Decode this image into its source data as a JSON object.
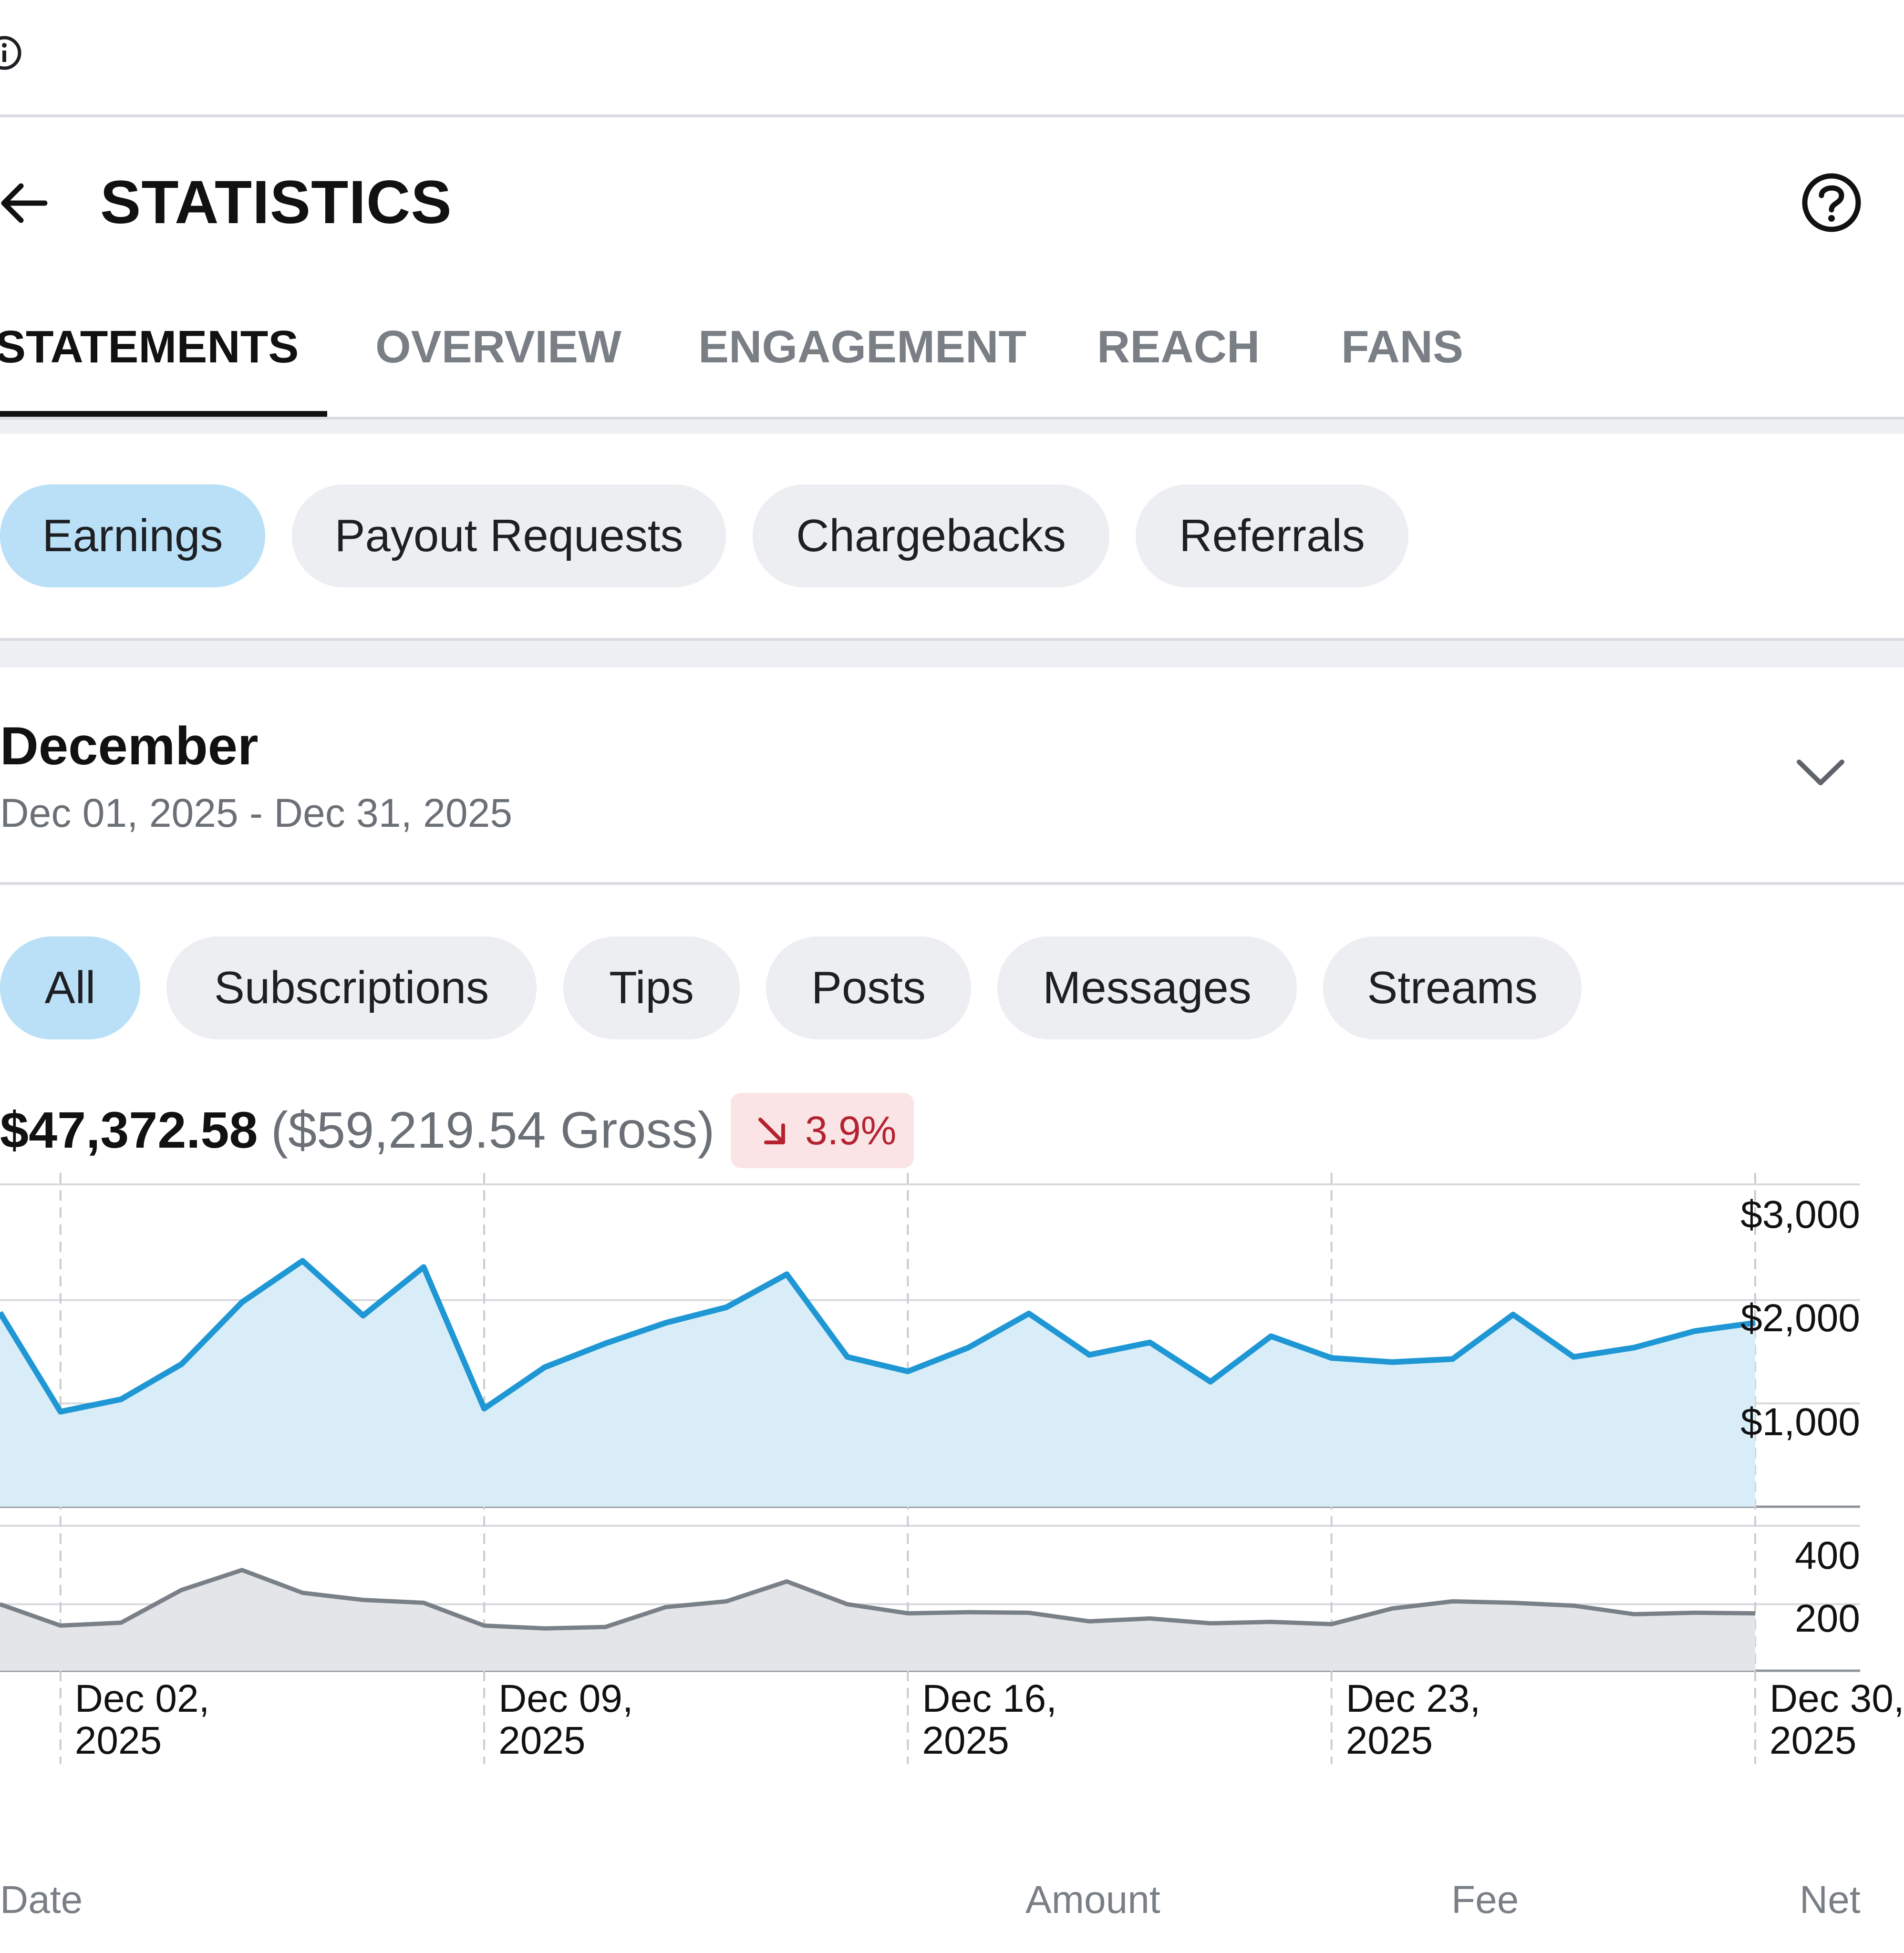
{
  "header": {
    "title": "STATISTICS",
    "back_icon": "arrow-left-icon",
    "help_icon": "question-circle-icon",
    "info_icon": "info-circle-icon"
  },
  "tabs": [
    {
      "label": "STATEMENTS",
      "active": true
    },
    {
      "label": "OVERVIEW",
      "active": false
    },
    {
      "label": "ENGAGEMENT",
      "active": false
    },
    {
      "label": "REACH",
      "active": false
    },
    {
      "label": "FANS",
      "active": false
    }
  ],
  "statement_types": [
    {
      "label": "Earnings",
      "active": true
    },
    {
      "label": "Payout Requests",
      "active": false
    },
    {
      "label": "Chargebacks",
      "active": false
    },
    {
      "label": "Referrals",
      "active": false
    }
  ],
  "period": {
    "title": "December",
    "range": "Dec 01, 2025 - Dec 31, 2025",
    "chevron_icon": "chevron-down-icon"
  },
  "categories": [
    {
      "label": "All",
      "active": true
    },
    {
      "label": "Subscriptions",
      "active": false
    },
    {
      "label": "Tips",
      "active": false
    },
    {
      "label": "Posts",
      "active": false
    },
    {
      "label": "Messages",
      "active": false
    },
    {
      "label": "Streams",
      "active": false
    }
  ],
  "summary": {
    "net": "$47,372.58",
    "gross": "($59,219.54 Gross)",
    "change": "3.9%",
    "change_direction": "down",
    "change_icon": "arrow-down-right-icon"
  },
  "colors": {
    "accent": "#1f97d4",
    "accent_fill": "#d8edf8",
    "secondary_line": "#7a8088",
    "secondary_fill": "#e3e5e8",
    "negative": "#b4232f",
    "active_pill": "#b9e0f7"
  },
  "chart_data": [
    {
      "type": "area",
      "x": [
        "Dec 01",
        "Dec 02",
        "Dec 03",
        "Dec 04",
        "Dec 05",
        "Dec 06",
        "Dec 07",
        "Dec 08",
        "Dec 09",
        "Dec 10",
        "Dec 11",
        "Dec 12",
        "Dec 13",
        "Dec 14",
        "Dec 15",
        "Dec 16",
        "Dec 17",
        "Dec 18",
        "Dec 19",
        "Dec 20",
        "Dec 21",
        "Dec 22",
        "Dec 23",
        "Dec 24",
        "Dec 25",
        "Dec 26",
        "Dec 27",
        "Dec 28",
        "Dec 29",
        "Dec 30"
      ],
      "series": [
        {
          "values": [
            1880,
            920,
            1040,
            1380,
            1980,
            2380,
            1850,
            2320,
            950,
            1350,
            1580,
            1780,
            1930,
            2250,
            1450,
            1310,
            1540,
            1870,
            1470,
            1590,
            1210,
            1650,
            1440,
            1400,
            1430,
            1860,
            1450,
            1540,
            1700,
            1780
          ]
        }
      ],
      "yticks": [
        "$3,000",
        "$2,000",
        "$1,000"
      ],
      "ylim": [
        0,
        3000
      ],
      "grid": true
    },
    {
      "type": "area",
      "x": [
        "Dec 01",
        "Dec 02",
        "Dec 03",
        "Dec 04",
        "Dec 05",
        "Dec 06",
        "Dec 07",
        "Dec 08",
        "Dec 09",
        "Dec 10",
        "Dec 11",
        "Dec 12",
        "Dec 13",
        "Dec 14",
        "Dec 15",
        "Dec 16",
        "Dec 17",
        "Dec 18",
        "Dec 19",
        "Dec 20",
        "Dec 21",
        "Dec 22",
        "Dec 23",
        "Dec 24",
        "Dec 25",
        "Dec 26",
        "Dec 27",
        "Dec 28",
        "Dec 29",
        "Dec 30"
      ],
      "series": [
        {
          "values": [
            200,
            125,
            135,
            250,
            320,
            240,
            215,
            205,
            125,
            115,
            120,
            190,
            210,
            280,
            200,
            168,
            172,
            170,
            140,
            150,
            133,
            138,
            130,
            185,
            210,
            205,
            195,
            165,
            170,
            168
          ]
        }
      ],
      "xticks": [
        {
          "line1": "Dec 02,",
          "line2": "2025"
        },
        {
          "line1": "Dec 09,",
          "line2": "2025"
        },
        {
          "line1": "Dec 16,",
          "line2": "2025"
        },
        {
          "line1": "Dec 23,",
          "line2": "2025"
        },
        {
          "line1": "Dec 30,",
          "line2": "2025"
        }
      ],
      "yticks": [
        "400",
        "200"
      ],
      "ylim": [
        0,
        400
      ],
      "grid": true
    }
  ],
  "table": {
    "columns": [
      "Date",
      "Amount",
      "Fee",
      "Net"
    ]
  }
}
